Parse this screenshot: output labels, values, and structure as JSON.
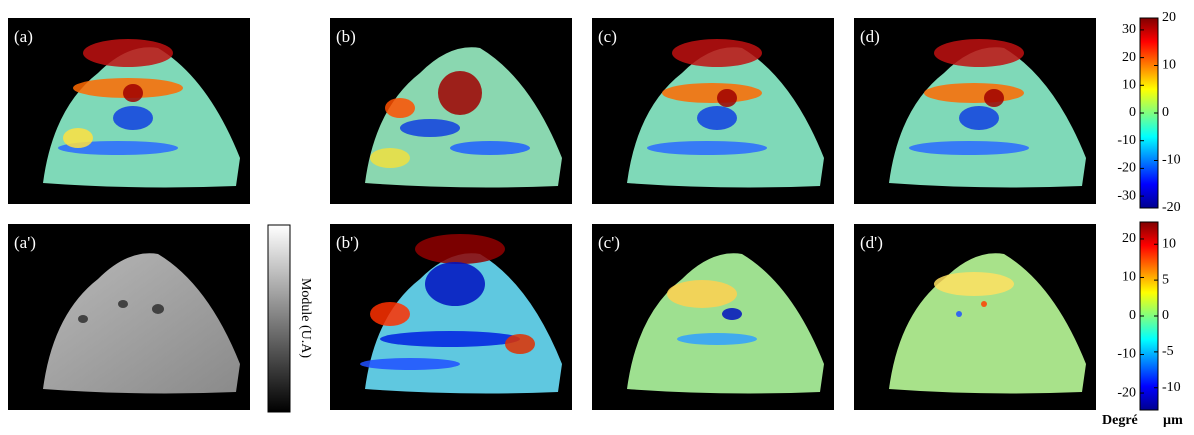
{
  "panels": [
    "(a)",
    "(b)",
    "(c)",
    "(d)",
    "(a')",
    "(b')",
    "(c')",
    "(d')"
  ],
  "gray_bar_label": "Module (U.A)",
  "colorbars": [
    {
      "left_lim": [
        -34.3,
        34.3
      ],
      "left_ticks": [
        30,
        20,
        10,
        0,
        -10,
        -20,
        -30
      ],
      "right_lim": [
        -20,
        20
      ],
      "right_ticks": [
        20,
        10,
        0,
        -10,
        -20
      ]
    },
    {
      "left_lim": [
        -24.4,
        24.4
      ],
      "left_ticks": [
        20,
        10,
        0,
        -10,
        -20
      ],
      "right_lim": [
        -13.1,
        13.1
      ],
      "right_ticks": [
        10,
        5,
        0,
        -5,
        -10
      ]
    }
  ],
  "units": [
    "Degré",
    "µm"
  ]
}
